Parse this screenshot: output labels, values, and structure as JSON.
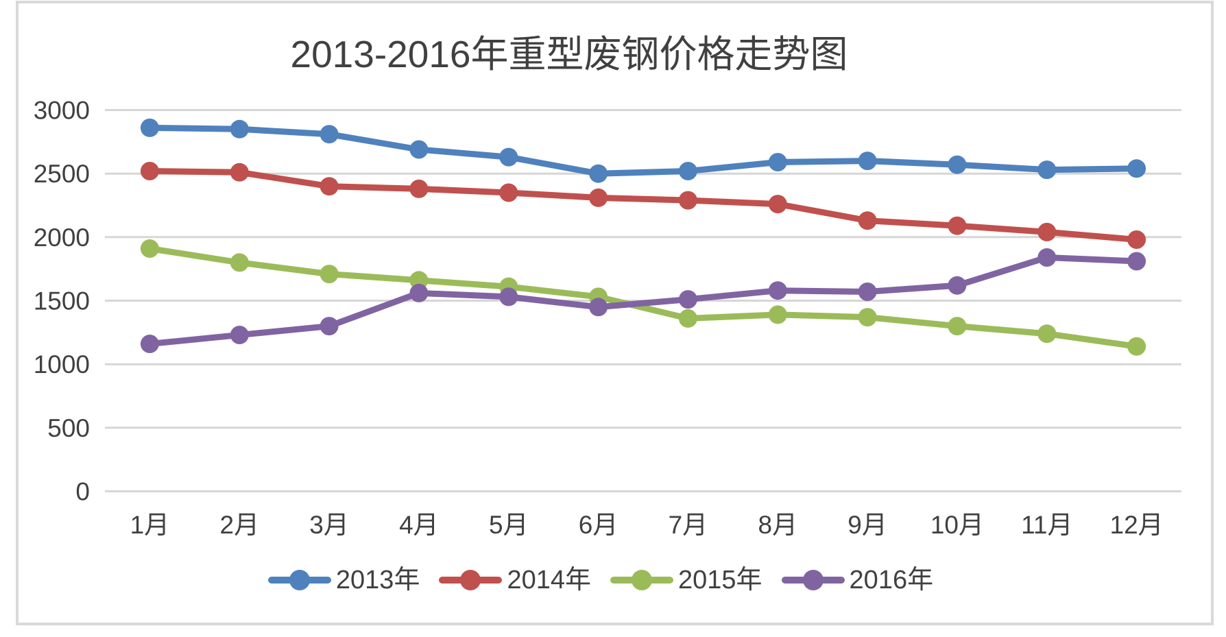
{
  "chart_data": {
    "type": "line",
    "title": "2013-2016年重型废钢价格走势图",
    "categories": [
      "1月",
      "2月",
      "3月",
      "4月",
      "5月",
      "6月",
      "7月",
      "8月",
      "9月",
      "10月",
      "11月",
      "12月"
    ],
    "series": [
      {
        "name": "2013年",
        "color": "#4F81BD",
        "values": [
          2860,
          2850,
          2810,
          2690,
          2630,
          2500,
          2520,
          2590,
          2600,
          2570,
          2530,
          2540
        ]
      },
      {
        "name": "2014年",
        "color": "#C0504D",
        "values": [
          2520,
          2510,
          2400,
          2380,
          2350,
          2310,
          2290,
          2260,
          2130,
          2090,
          2040,
          1980
        ]
      },
      {
        "name": "2015年",
        "color": "#9BBB59",
        "values": [
          1910,
          1800,
          1710,
          1660,
          1610,
          1530,
          1360,
          1390,
          1370,
          1300,
          1240,
          1140
        ]
      },
      {
        "name": "2016年",
        "color": "#8064A2",
        "values": [
          1160,
          1230,
          1300,
          1560,
          1530,
          1450,
          1510,
          1580,
          1570,
          1620,
          1840,
          1810
        ]
      }
    ],
    "y_axis": {
      "min": 0,
      "max": 3000,
      "step": 500,
      "tick_labels": [
        "0",
        "500",
        "1000",
        "1500",
        "2000",
        "2500",
        "3000"
      ]
    },
    "legend_position": "bottom",
    "grid": true,
    "styles": {
      "background": "#FFFFFF",
      "frame_border": "#D9D9D9",
      "gridline": "#D6D6D6",
      "text_color": "#404040"
    }
  }
}
